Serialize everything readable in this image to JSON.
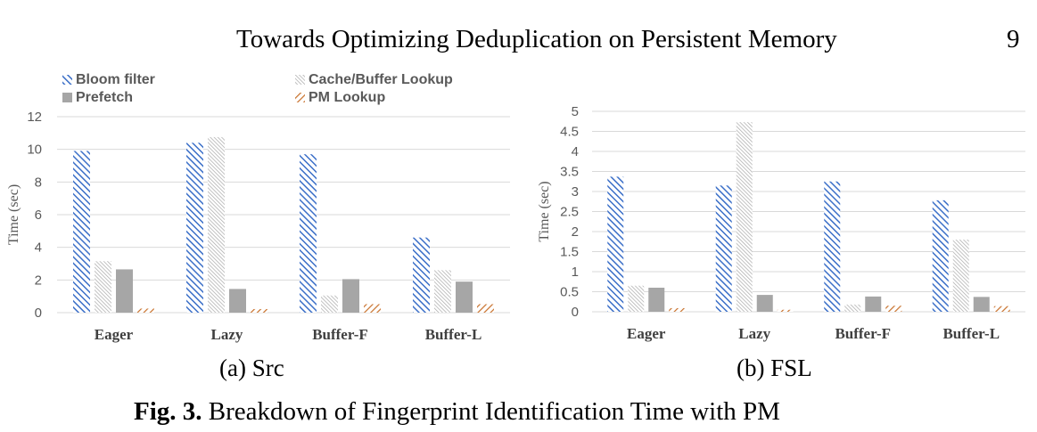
{
  "header": {
    "running_title": "Towards Optimizing Deduplication on Persistent Memory",
    "page_number": "9"
  },
  "legend": [
    {
      "label": "Bloom filter",
      "pattern": "bloom"
    },
    {
      "label": "Cache/Buffer Lookup",
      "pattern": "cache"
    },
    {
      "label": "Prefetch",
      "pattern": "prefetch"
    },
    {
      "label": "PM Lookup",
      "pattern": "pm"
    }
  ],
  "colors": {
    "bloom": "#3b6fc8",
    "cache": "#a8a8a8",
    "prefetch": "#a6a6a6",
    "pm": "#c8702a",
    "grid": "#d9d9d9"
  },
  "chart_data": [
    {
      "type": "bar",
      "categories": [
        "Eager",
        "Lazy",
        "Buffer-F",
        "Buffer-L"
      ],
      "series": [
        {
          "name": "Bloom filter",
          "values": [
            9.9,
            10.4,
            9.7,
            4.6
          ]
        },
        {
          "name": "Cache/Buffer Lookup",
          "values": [
            3.15,
            10.75,
            1.05,
            2.6
          ]
        },
        {
          "name": "Prefetch",
          "values": [
            2.65,
            1.45,
            2.05,
            1.9
          ]
        },
        {
          "name": "PM Lookup",
          "values": [
            0.25,
            0.22,
            0.52,
            0.52
          ]
        }
      ],
      "ylabel": "Time (sec)",
      "ylim": [
        0,
        12
      ],
      "yticks": [
        "0",
        "2",
        "4",
        "6",
        "8",
        "10",
        "12"
      ],
      "grid": true,
      "legend_position": "top"
    },
    {
      "type": "bar",
      "categories": [
        "Eager",
        "Lazy",
        "Buffer-F",
        "Buffer-L"
      ],
      "series": [
        {
          "name": "Bloom filter",
          "values": [
            3.37,
            3.15,
            3.25,
            2.78
          ]
        },
        {
          "name": "Cache/Buffer Lookup",
          "values": [
            0.65,
            4.73,
            0.18,
            1.8
          ]
        },
        {
          "name": "Prefetch",
          "values": [
            0.6,
            0.42,
            0.38,
            0.37
          ]
        },
        {
          "name": "PM Lookup",
          "values": [
            0.09,
            0.05,
            0.15,
            0.14
          ]
        }
      ],
      "ylabel": "Time (sec)",
      "ylim": [
        0,
        5
      ],
      "yticks": [
        "0",
        "0.5",
        "1",
        "1.5",
        "2",
        "2.5",
        "3",
        "3.5",
        "4",
        "4.5",
        "5"
      ],
      "grid": true
    }
  ],
  "captions": {
    "a": "(a) Src",
    "b": "(b) FSL"
  },
  "figure_caption": {
    "label": "Fig. 3.",
    "text": " Breakdown of Fingerprint Identification Time with PM"
  }
}
